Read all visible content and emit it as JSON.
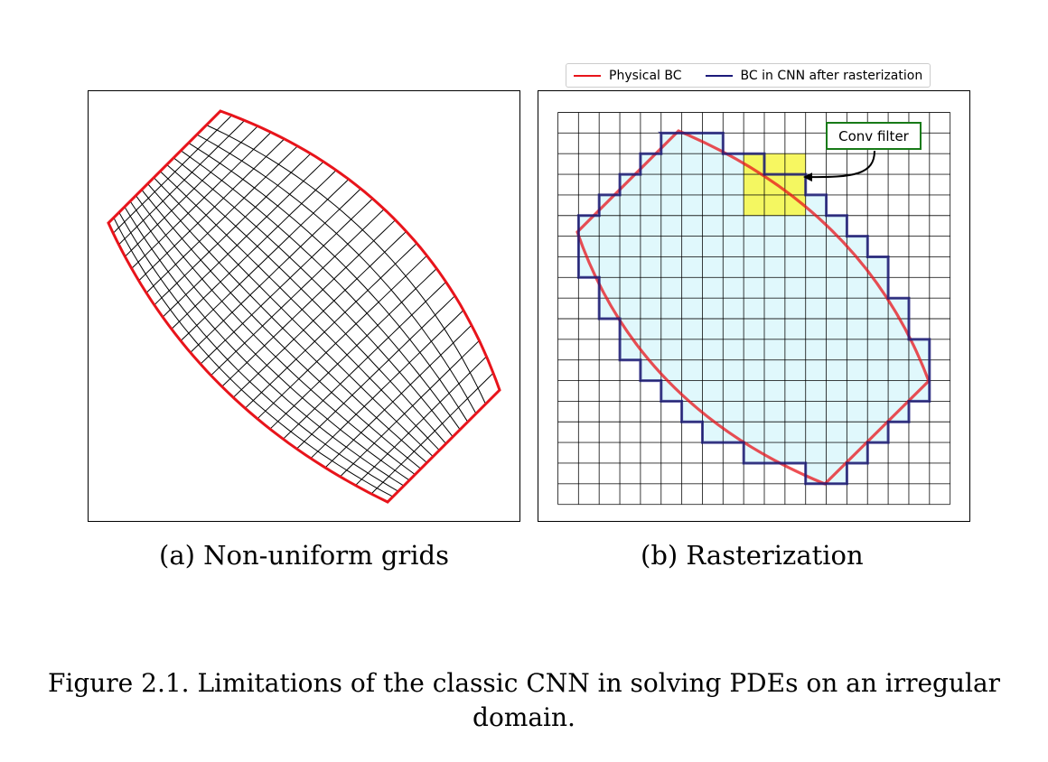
{
  "legend": {
    "items": [
      {
        "label": "Physical BC",
        "color": "#e8141b"
      },
      {
        "label": "BC in CNN after rasterization",
        "color": "#1c1a7a"
      }
    ]
  },
  "panel_b": {
    "conv_filter_label": "Conv filter"
  },
  "subcaptions": {
    "a": "(a) Non-uniform grids",
    "b": "(b) Rasterization"
  },
  "caption": "Figure 2.1. Limitations of the classic CNN in solving PDEs on an irregular domain.",
  "colors": {
    "boundary": "#e8141b",
    "raster_boundary": "#1c1a7a",
    "interior_fill": "#e0f8fc",
    "filter_fill": "#f6f650",
    "filter_border": "#177a17"
  }
}
